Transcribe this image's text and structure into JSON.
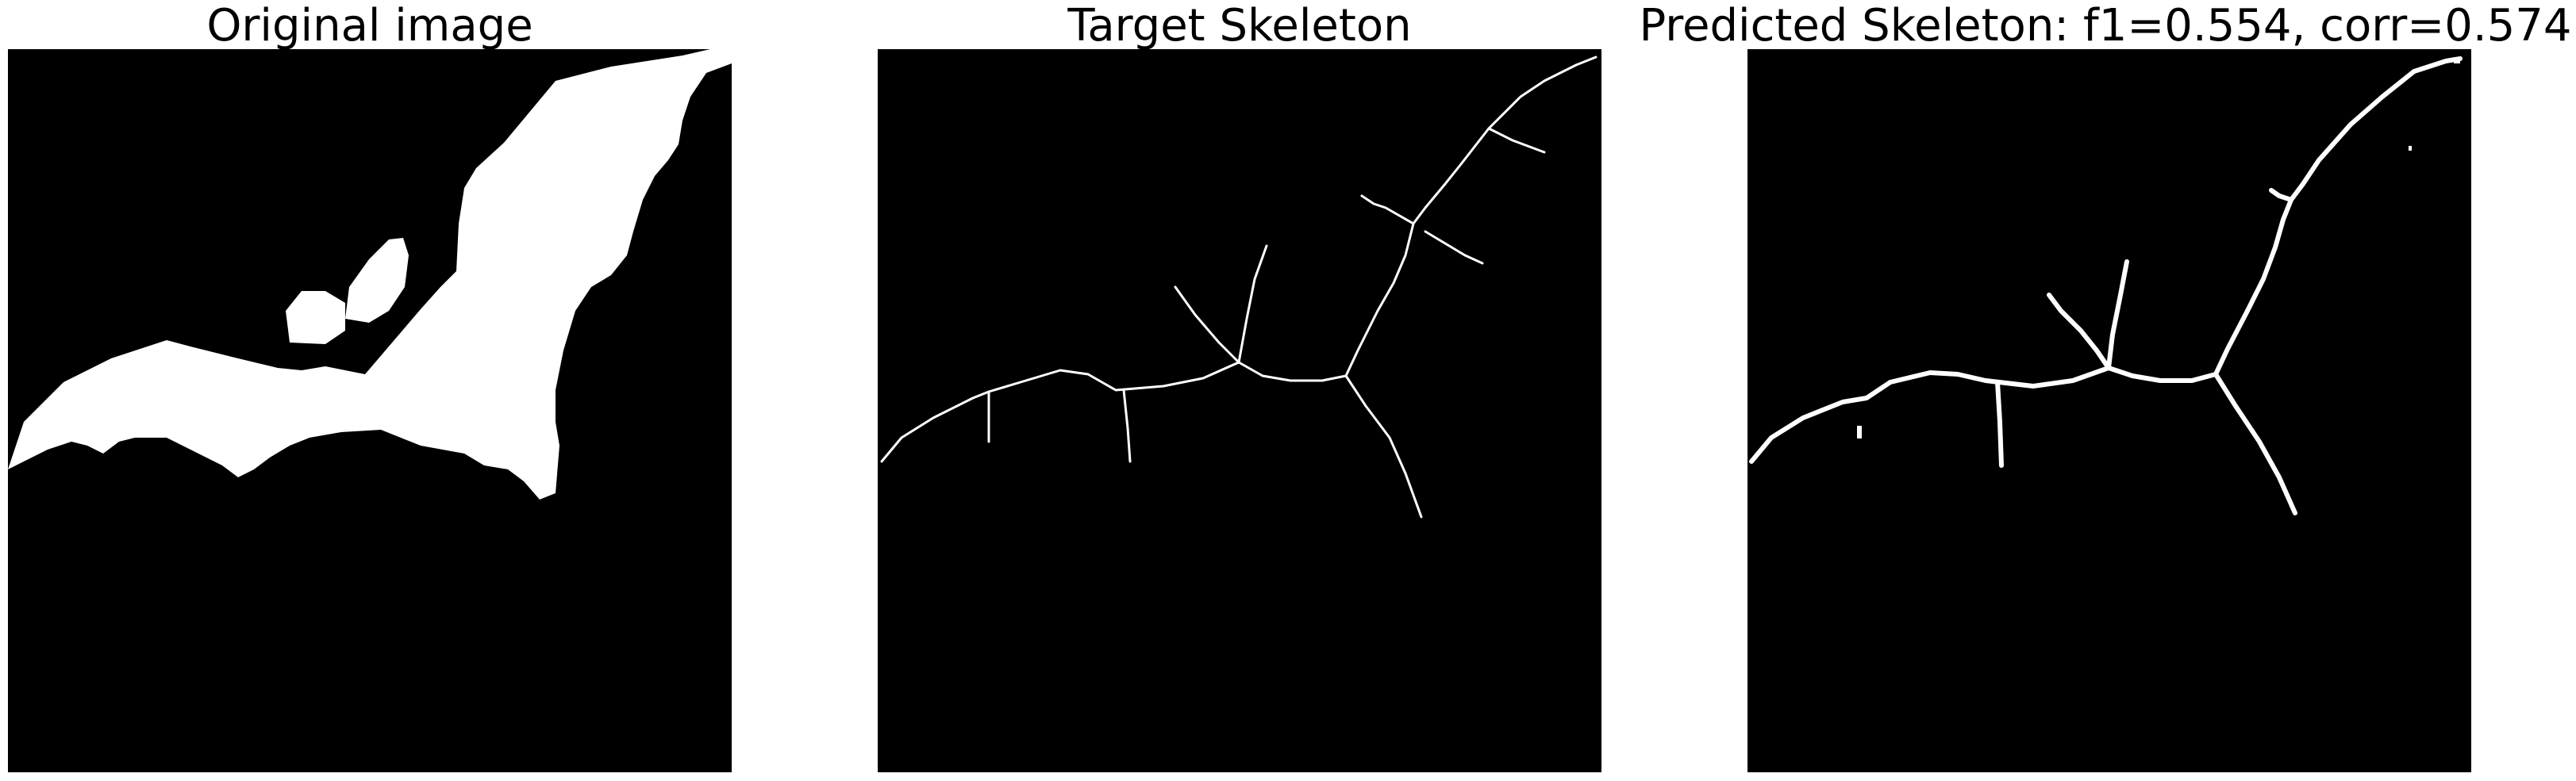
{
  "panels": [
    {
      "title": "Original image"
    },
    {
      "title": "Target Skeleton"
    },
    {
      "title": "Predicted Skeleton: f1=0.554, corr=0.574"
    }
  ],
  "colors": {
    "background": "#000000",
    "foreground": "#ffffff",
    "page": "#ffffff",
    "title_text": "#000000"
  }
}
